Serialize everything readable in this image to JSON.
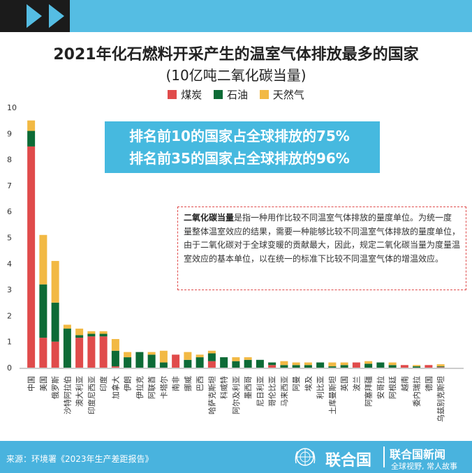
{
  "title": "2021年化石燃料开采产生的温室气体排放最多的国家",
  "subtitle": "(10亿吨二氧化碳当量)",
  "callout": {
    "line1": "排名前10的国家占全球排放的75%",
    "line2": "排名前35的国家占全球排放的96%"
  },
  "note": {
    "term": "二氧化碳当量",
    "text": "是指一种用作比较不同温室气体排放的量度单位。为统一度量整体温室效应的结果，需要一种能够比较不同温室气体排放的量度单位，由于二氧化碳对于全球变暖的贡献最大，因此，规定二氧化碳当量为度量温室效应的基本单位，以在统一的标准下比较不同温室气体的增温效应。"
  },
  "footer": {
    "source": "来源：环境署《2023年生产差距报告》",
    "org": "联合国",
    "news": "联合国新闻",
    "slogan": "全球视野, 常人故事"
  },
  "colors": {
    "coal": "#e04b4b",
    "oil": "#0d6b36",
    "gas": "#f2b944"
  },
  "chart_data": {
    "type": "bar",
    "stacked": true,
    "title": "2021年化石燃料开采产生的温室气体排放最多的国家",
    "ylabel": "10亿吨二氧化碳当量",
    "ylim": [
      0,
      10
    ],
    "yticks": [
      0,
      1,
      2,
      3,
      4,
      5,
      6,
      7,
      8,
      9,
      10
    ],
    "grid": false,
    "legend": "top-center",
    "categories": [
      "中国",
      "美国",
      "俄罗斯",
      "沙特阿拉伯",
      "澳大利亚",
      "印度尼西亚",
      "印度",
      "加拿大",
      "伊朗",
      "伊拉克",
      "阿联酋",
      "卡塔尔",
      "南非",
      "挪威",
      "巴西",
      "哈萨克斯坦",
      "科威特",
      "阿尔及利亚",
      "墨西哥",
      "尼日利亚",
      "哥伦比亚",
      "马来西亚",
      "阿曼",
      "埃及",
      "利比亚",
      "土库曼斯坦",
      "英国",
      "波兰",
      "阿塞拜疆",
      "安哥拉",
      "阿根廷",
      "越南",
      "委内瑞拉",
      "德国",
      "乌兹别克斯坦"
    ],
    "series": [
      {
        "name": "煤炭",
        "values": [
          8.5,
          1.15,
          1.0,
          0.0,
          1.15,
          1.2,
          1.2,
          0.05,
          0.0,
          0.0,
          0.0,
          0.0,
          0.5,
          0.0,
          0.0,
          0.25,
          0.0,
          0.0,
          0.0,
          0.0,
          0.1,
          0.0,
          0.0,
          0.0,
          0.0,
          0.0,
          0.0,
          0.2,
          0.0,
          0.0,
          0.0,
          0.1,
          0.0,
          0.1,
          0.02
        ]
      },
      {
        "name": "石油",
        "values": [
          0.6,
          2.05,
          1.5,
          1.5,
          0.1,
          0.1,
          0.1,
          0.6,
          0.4,
          0.6,
          0.5,
          0.2,
          0.0,
          0.3,
          0.4,
          0.3,
          0.4,
          0.25,
          0.3,
          0.3,
          0.1,
          0.1,
          0.1,
          0.1,
          0.2,
          0.05,
          0.1,
          0.0,
          0.15,
          0.2,
          0.1,
          0.0,
          0.05,
          0.0,
          0.03
        ]
      },
      {
        "name": "天然气",
        "values": [
          0.4,
          1.9,
          1.6,
          0.15,
          0.25,
          0.1,
          0.1,
          0.45,
          0.2,
          0.0,
          0.1,
          0.45,
          0.0,
          0.3,
          0.1,
          0.1,
          0.0,
          0.15,
          0.1,
          0.0,
          0.0,
          0.15,
          0.1,
          0.1,
          0.0,
          0.15,
          0.1,
          0.0,
          0.1,
          0.0,
          0.1,
          0.0,
          0.05,
          0.0,
          0.08
        ]
      }
    ]
  }
}
